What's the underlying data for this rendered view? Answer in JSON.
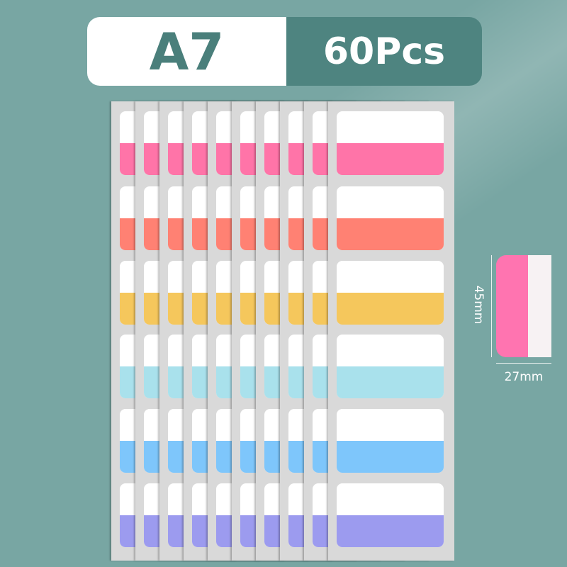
{
  "header": {
    "size": "A7",
    "count": "60Pcs"
  },
  "sheets": {
    "sheet_count": 10,
    "label_colors": [
      "#ff74a8",
      "#ff8173",
      "#f5c75c",
      "#a9e1ec",
      "#7ec6fb",
      "#9c9bef"
    ]
  },
  "dimensions": {
    "height": "45mm",
    "width": "27mm",
    "tab_colors": {
      "color": "#ff74b0",
      "clear": "#f7f2f3"
    }
  },
  "colors": {
    "background": "#78a6a3",
    "accent": "#4e8480"
  }
}
